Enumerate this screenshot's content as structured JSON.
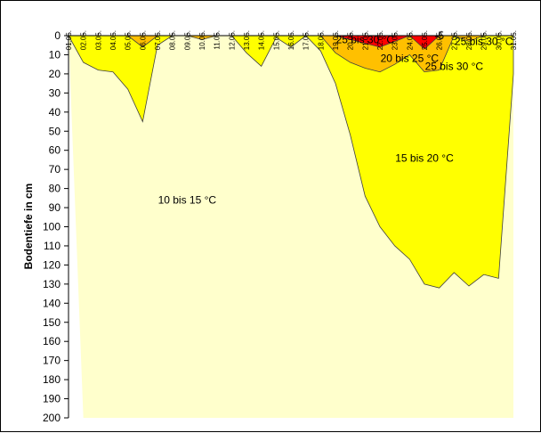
{
  "chart_data": {
    "type": "area",
    "title": "",
    "xlabel": "",
    "ylabel": "Bodentiefe in cm",
    "ylim": [
      0,
      200
    ],
    "y_reversed": true,
    "y_ticks": [
      0,
      10,
      20,
      30,
      40,
      50,
      60,
      70,
      80,
      90,
      100,
      110,
      120,
      130,
      140,
      150,
      160,
      170,
      180,
      190,
      200
    ],
    "categories": [
      "01.05.",
      "02.05.",
      "03.05.",
      "04.05.",
      "05.05.",
      "06.05.",
      "07.05.",
      "08.05.",
      "09.05.",
      "10.05.",
      "11.05.",
      "12.05.",
      "13.05.",
      "14.05.",
      "15.05.",
      "16.05.",
      "17.05.",
      "18.05.",
      "19.05.",
      "20.05.",
      "21.05.",
      "22.05.",
      "23.05.",
      "24.05.",
      "25.05.",
      "26.05.",
      "27.05.",
      "28.05.",
      "29.05.",
      "30.05.",
      "31.05."
    ],
    "grid": false,
    "series": [
      {
        "name": "10 bis 15 °C",
        "color": "#ffffcc",
        "depth": [
          0,
          200,
          200,
          200,
          200,
          200,
          200,
          200,
          200,
          200,
          200,
          200,
          200,
          200,
          200,
          200,
          200,
          200,
          200,
          200,
          200,
          200,
          200,
          200,
          200,
          200,
          200,
          200,
          200,
          200,
          200
        ]
      },
      {
        "name": "15 bis 20 °C",
        "color": "#ffff00",
        "depth": [
          0,
          14,
          18,
          19,
          28,
          45,
          5,
          0,
          0,
          0,
          0,
          0,
          9,
          16,
          1,
          6,
          0,
          8,
          25,
          52,
          84,
          100,
          110,
          117,
          130,
          132,
          124,
          131,
          125,
          127,
          20
        ]
      },
      {
        "name": "20 bis 25 °C",
        "color": "#ffc000",
        "depth": [
          0,
          0,
          0,
          0,
          0,
          6,
          0,
          0,
          0,
          2,
          0,
          0,
          0,
          0,
          0,
          0,
          0,
          0,
          9,
          14,
          17,
          19,
          15,
          10,
          19,
          18,
          0,
          3,
          0,
          0,
          0
        ]
      },
      {
        "name": "25 bis 30 °C",
        "color": "#ff0000",
        "depth": [
          0,
          0,
          0,
          0,
          0,
          0,
          0,
          0,
          0,
          0,
          0,
          0,
          0,
          0,
          0,
          0,
          0,
          0,
          0,
          2,
          4,
          6,
          3,
          0,
          7,
          0,
          0,
          0,
          0,
          0,
          0
        ]
      }
    ],
    "labels": [
      {
        "text": "10 bis 15 °C",
        "category": "09.05.",
        "depth": 86
      },
      {
        "text": "15 bis 20 °C",
        "category": "25.05.",
        "depth": 64
      },
      {
        "text": "20 bis 25 °C",
        "category": "24.05.",
        "depth": 12
      },
      {
        "text": "25 bis 30 °C",
        "category": "21.05.",
        "depth": 2
      },
      {
        "text": "25 bis 30 °C",
        "category": "27.05.",
        "depth": 16
      }
    ],
    "fragment_labels": [
      {
        "text": "-5",
        "category": "26.05.",
        "depth": -12,
        "style": "small"
      },
      {
        "text": "25 bis 30 °C",
        "category": "29.05.",
        "depth": 3,
        "style": "small"
      }
    ]
  }
}
